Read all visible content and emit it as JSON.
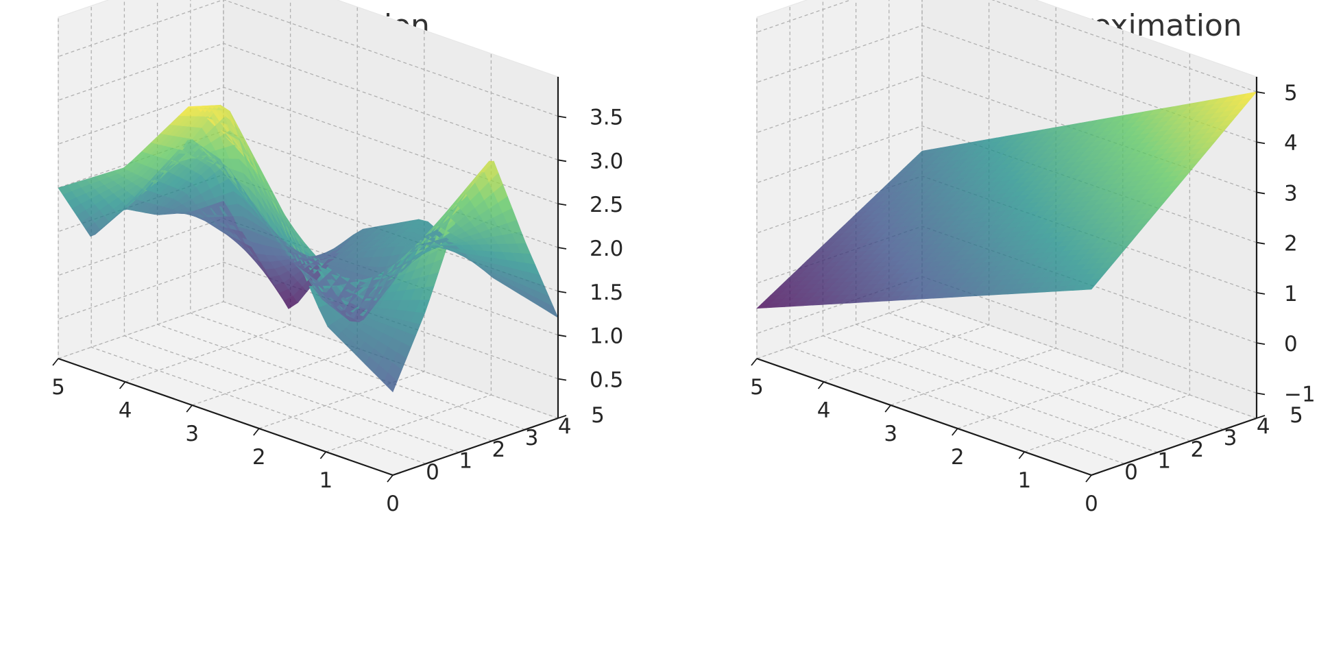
{
  "chart_data": [
    {
      "type": "surface3d",
      "title": "Original function",
      "x": [
        0,
        1,
        2,
        3,
        4,
        5
      ],
      "y": [
        0,
        1,
        2,
        3,
        4,
        5
      ],
      "x_ticks": [
        "0",
        "1",
        "2",
        "3",
        "4",
        "5"
      ],
      "y_ticks": [
        "0",
        "1",
        "2",
        "3",
        "4",
        "5"
      ],
      "z_ticks": [
        "0.5",
        "1.0",
        "1.5",
        "2.0",
        "2.5",
        "3.0",
        "3.5"
      ],
      "xlim": [
        0,
        5
      ],
      "ylim": [
        0,
        5
      ],
      "zlim": [
        0.05,
        3.95
      ],
      "grid": true,
      "colormap": "viridis",
      "surface_grid": {
        "x": [
          0,
          1,
          2,
          3,
          4,
          5
        ],
        "y": [
          0,
          1,
          2,
          3,
          4,
          5
        ],
        "z": [
          [
            1.0,
            1.5,
            3.0,
            3.5,
            2.5,
            2.0
          ],
          [
            1.8,
            1.6,
            2.2,
            3.4,
            2.2,
            1.3
          ],
          [
            2.8,
            1.9,
            1.2,
            2.0,
            2.6,
            1.5
          ],
          [
            3.3,
            2.1,
            0.8,
            1.3,
            2.2,
            1.3
          ],
          [
            2.2,
            1.9,
            1.6,
            1.2,
            1.0,
            1.2
          ],
          [
            1.2,
            1.4,
            1.8,
            1.4,
            0.2,
            1.2
          ]
        ]
      }
    },
    {
      "type": "surface3d",
      "title": "First order Taylor approximation",
      "x": [
        0,
        5
      ],
      "y": [
        0,
        5
      ],
      "x_ticks": [
        "0",
        "1",
        "2",
        "3",
        "4",
        "5"
      ],
      "y_ticks": [
        "0",
        "1",
        "2",
        "3",
        "4",
        "5"
      ],
      "z_ticks": [
        "−1",
        "0",
        "1",
        "2",
        "3",
        "4",
        "5"
      ],
      "xlim": [
        0,
        5
      ],
      "ylim": [
        0,
        5
      ],
      "zlim": [
        -1.5,
        5.3
      ],
      "grid": true,
      "colormap": "viridis",
      "surface_grid": {
        "x": [
          0,
          5
        ],
        "y": [
          0,
          5
        ],
        "z": [
          [
            2.2,
            -0.5
          ],
          [
            5.0,
            1.5
          ]
        ]
      }
    }
  ]
}
